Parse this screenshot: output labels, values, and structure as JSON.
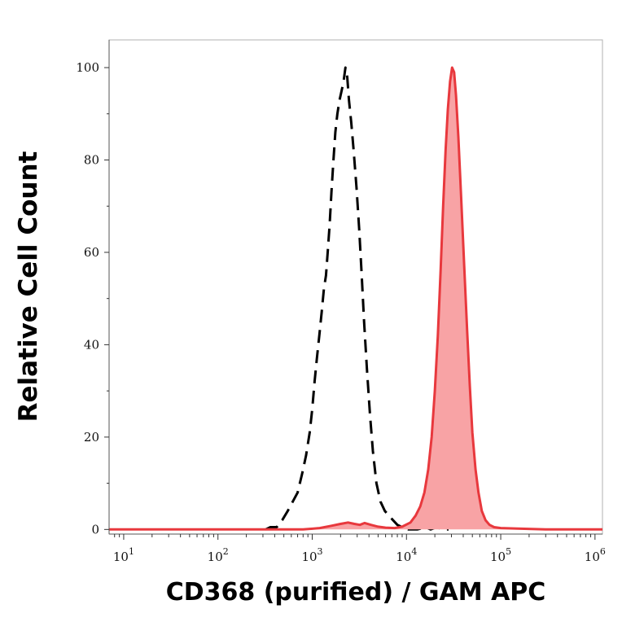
{
  "chart_data": {
    "type": "area",
    "xlabel": "CD368 (purified) / GAM APC",
    "ylabel": "Relative Cell Count",
    "x_scale": "log",
    "xlim": [
      7,
      1200000
    ],
    "ylim": [
      -1,
      106
    ],
    "x_ticks": [
      {
        "value": 10,
        "base": "10",
        "exp": "1"
      },
      {
        "value": 100,
        "base": "10",
        "exp": "2"
      },
      {
        "value": 1000,
        "base": "10",
        "exp": "3"
      },
      {
        "value": 10000,
        "base": "10",
        "exp": "4"
      },
      {
        "value": 100000,
        "base": "10",
        "exp": "5"
      },
      {
        "value": 1000000,
        "base": "10",
        "exp": "6"
      }
    ],
    "y_ticks": [
      0,
      20,
      40,
      60,
      80,
      100
    ],
    "grid": false,
    "legend": "none",
    "series": [
      {
        "style": "dashed",
        "color": "#000000",
        "fill": false,
        "points": [
          [
            320,
            0
          ],
          [
            360,
            0.5
          ],
          [
            420,
            0.5
          ],
          [
            480,
            2
          ],
          [
            550,
            4
          ],
          [
            620,
            6
          ],
          [
            700,
            8
          ],
          [
            780,
            12
          ],
          [
            860,
            16
          ],
          [
            940,
            21
          ],
          [
            1000,
            26
          ],
          [
            1060,
            32
          ],
          [
            1120,
            37
          ],
          [
            1190,
            42
          ],
          [
            1260,
            47
          ],
          [
            1330,
            52
          ],
          [
            1400,
            55
          ],
          [
            1460,
            60
          ],
          [
            1530,
            66
          ],
          [
            1600,
            73
          ],
          [
            1680,
            80
          ],
          [
            1760,
            86
          ],
          [
            1850,
            90
          ],
          [
            1950,
            93
          ],
          [
            2050,
            95
          ],
          [
            2150,
            97
          ],
          [
            2250,
            100
          ],
          [
            2350,
            98
          ],
          [
            2450,
            93
          ],
          [
            2600,
            88
          ],
          [
            2750,
            82
          ],
          [
            2950,
            74
          ],
          [
            3150,
            65
          ],
          [
            3350,
            55
          ],
          [
            3550,
            45
          ],
          [
            3800,
            35
          ],
          [
            4100,
            25
          ],
          [
            4400,
            17
          ],
          [
            4800,
            10
          ],
          [
            5300,
            6
          ],
          [
            5900,
            4
          ],
          [
            6500,
            3
          ],
          [
            7200,
            2
          ],
          [
            8000,
            1
          ],
          [
            9000,
            0.5
          ],
          [
            10500,
            0
          ],
          [
            13000,
            0
          ],
          [
            16000,
            0.5
          ],
          [
            18000,
            0
          ],
          [
            21000,
            0.5
          ],
          [
            24000,
            0
          ],
          [
            28000,
            0
          ]
        ]
      },
      {
        "style": "solid",
        "color": "#e8383d",
        "fill": true,
        "fill_color": "#f8a3a5",
        "points": [
          [
            7,
            0
          ],
          [
            30,
            0
          ],
          [
            100,
            0
          ],
          [
            300,
            0
          ],
          [
            800,
            0
          ],
          [
            1200,
            0.3
          ],
          [
            1600,
            0.8
          ],
          [
            2000,
            1.2
          ],
          [
            2400,
            1.5
          ],
          [
            2800,
            1.2
          ],
          [
            3200,
            1.0
          ],
          [
            3600,
            1.4
          ],
          [
            4200,
            1.0
          ],
          [
            5000,
            0.6
          ],
          [
            6000,
            0.4
          ],
          [
            7500,
            0.3
          ],
          [
            9000,
            0.6
          ],
          [
            11000,
            1.5
          ],
          [
            12500,
            3
          ],
          [
            14000,
            5
          ],
          [
            15500,
            8
          ],
          [
            17000,
            13
          ],
          [
            18500,
            20
          ],
          [
            20000,
            30
          ],
          [
            21500,
            42
          ],
          [
            23000,
            56
          ],
          [
            24500,
            70
          ],
          [
            26000,
            82
          ],
          [
            27500,
            91
          ],
          [
            29000,
            97
          ],
          [
            30500,
            100
          ],
          [
            32000,
            99
          ],
          [
            33500,
            94
          ],
          [
            35500,
            85
          ],
          [
            38000,
            72
          ],
          [
            41000,
            57
          ],
          [
            44000,
            43
          ],
          [
            47000,
            31
          ],
          [
            50000,
            21
          ],
          [
            54000,
            13
          ],
          [
            58000,
            8
          ],
          [
            63000,
            4
          ],
          [
            69000,
            2
          ],
          [
            76000,
            1
          ],
          [
            85000,
            0.5
          ],
          [
            100000,
            0.3
          ],
          [
            150000,
            0.2
          ],
          [
            300000,
            0
          ],
          [
            1200000,
            0
          ]
        ]
      }
    ]
  }
}
